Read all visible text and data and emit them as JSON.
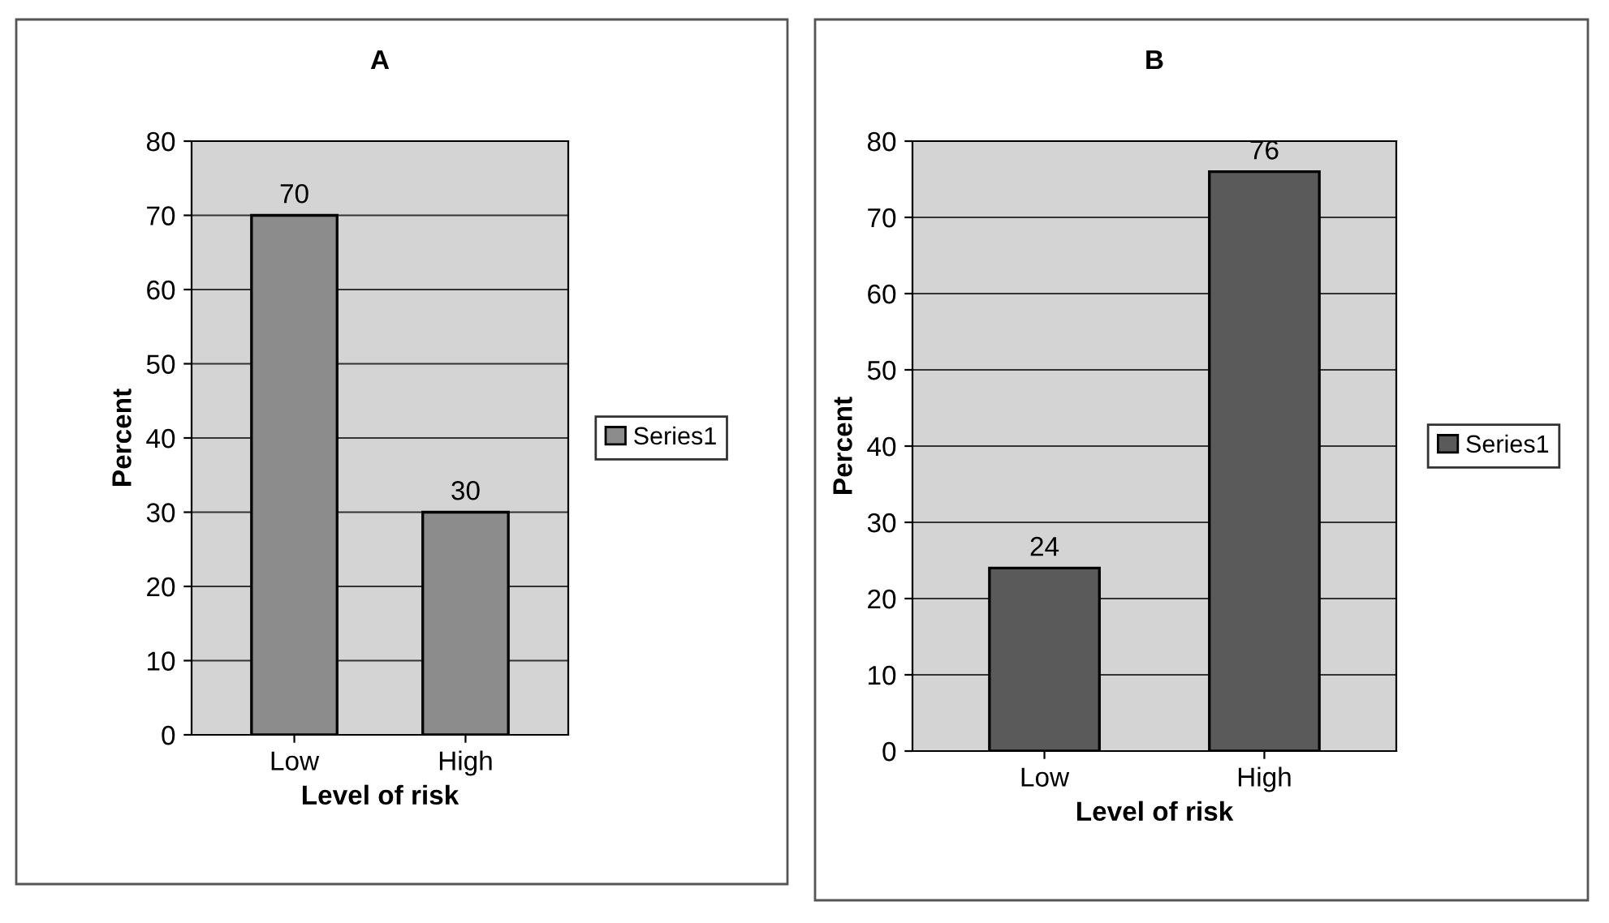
{
  "chart_data": [
    {
      "type": "bar",
      "title": "A",
      "xlabel": "Level of risk",
      "ylabel": "Percent",
      "categories": [
        "Low",
        "High"
      ],
      "series": [
        {
          "name": "Series1",
          "color": "#8c8c8c",
          "values": [
            70,
            30
          ]
        }
      ],
      "ylim": [
        0,
        80
      ],
      "yticks": [
        0,
        10,
        20,
        30,
        40,
        50,
        60,
        70,
        80
      ],
      "grid": "y",
      "legend": "right",
      "data_labels": true
    },
    {
      "type": "bar",
      "title": "B",
      "xlabel": "Level of risk",
      "ylabel": "Percent",
      "categories": [
        "Low",
        "High"
      ],
      "series": [
        {
          "name": "Series1",
          "color": "#5a5a5a",
          "values": [
            24,
            76
          ]
        }
      ],
      "ylim": [
        0,
        80
      ],
      "yticks": [
        0,
        10,
        20,
        30,
        40,
        50,
        60,
        70,
        80
      ],
      "grid": "y",
      "legend": "right",
      "data_labels": true
    }
  ]
}
